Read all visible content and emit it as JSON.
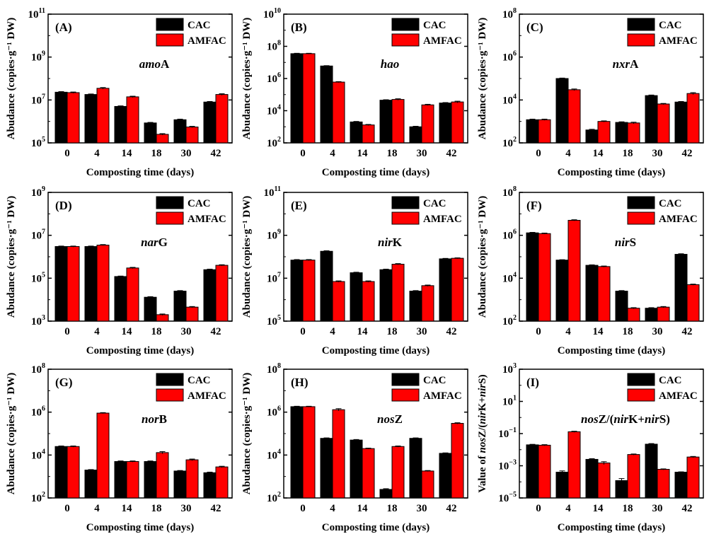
{
  "chart_data": {
    "type": "bar",
    "x_label": "Composting time (days)",
    "y_label": "Abudance (copies·g⁻¹ DW)",
    "categories": [
      "0",
      "4",
      "14",
      "18",
      "30",
      "42"
    ],
    "colors": {
      "CAC": "#000000",
      "AMFAC": "#ff0000"
    },
    "legend_location": "top-right",
    "panels": [
      {
        "label": "(A)",
        "gene_title": [
          {
            "t": "amo",
            "i": true
          },
          {
            "t": "A",
            "i": false
          }
        ],
        "y_axis_label": "Abudance (copies·g⁻¹ DW)",
        "y_log_range": [
          5,
          11
        ],
        "y_ticks": [
          5,
          7,
          9,
          11
        ],
        "series": [
          {
            "name": "CAC",
            "values": [
              23000000.0,
              18000000.0,
              5000000.0,
              850000.0,
              1200000.0,
              8000000.0
            ],
            "errors": [
              1500000.0,
              1000000.0,
              300000.0,
              50000.0,
              80000.0,
              500000.0
            ]
          },
          {
            "name": "AMFAC",
            "values": [
              22000000.0,
              35000000.0,
              14000000.0,
              250000.0,
              550000.0,
              18000000.0
            ],
            "errors": [
              1500000.0,
              3000000.0,
              1000000.0,
              20000.0,
              40000.0,
              1500000.0
            ]
          }
        ]
      },
      {
        "label": "(B)",
        "gene_title": [
          {
            "t": "hao",
            "i": true
          }
        ],
        "y_axis_label": "Abudance (copies·g⁻¹ DW)",
        "y_log_range": [
          2,
          10
        ],
        "y_ticks": [
          2,
          4,
          6,
          8,
          10
        ],
        "series": [
          {
            "name": "CAC",
            "values": [
              35000000.0,
              6000000.0,
              2000.0,
              45000.0,
              1000.0,
              30000.0
            ],
            "errors": [
              2000000.0,
              300000.0,
              150.0,
              3000.0,
              80.0,
              2000.0
            ]
          },
          {
            "name": "AMFAC",
            "values": [
              35000000.0,
              600000.0,
              1300.0,
              50000.0,
              23000.0,
              35000.0
            ],
            "errors": [
              2000000.0,
              40000.0,
              100.0,
              5000.0,
              2000.0,
              4000.0
            ]
          }
        ]
      },
      {
        "label": "(C)",
        "gene_title": [
          {
            "t": "nxr",
            "i": true
          },
          {
            "t": "A",
            "i": false
          }
        ],
        "y_axis_label": "Abudance (copies·g⁻¹ DW)",
        "y_log_range": [
          2,
          8
        ],
        "y_ticks": [
          2,
          4,
          6,
          8
        ],
        "series": [
          {
            "name": "CAC",
            "values": [
              1200.0,
              100000.0,
              400.0,
              900.0,
              16000.0,
              8000.0
            ],
            "errors": [
              80.0,
              5000.0,
              30.0,
              60.0,
              1000.0,
              500.0
            ]
          },
          {
            "name": "AMFAC",
            "values": [
              1200.0,
              30000.0,
              1000.0,
              850.0,
              6500.0,
              20000.0
            ],
            "errors": [
              80.0,
              2500.0,
              60.0,
              70.0,
              400.0,
              2000.0
            ]
          }
        ]
      },
      {
        "label": "(D)",
        "gene_title": [
          {
            "t": "nar",
            "i": true
          },
          {
            "t": "G",
            "i": false
          }
        ],
        "y_axis_label": "Abudance (copies·g⁻¹ DW)",
        "y_log_range": [
          3,
          9
        ],
        "y_ticks": [
          3,
          5,
          7,
          9
        ],
        "series": [
          {
            "name": "CAC",
            "values": [
              3000000.0,
              3000000.0,
              120000.0,
              13000.0,
              25000.0,
              250000.0
            ],
            "errors": [
              150000.0,
              150000.0,
              6000.0,
              800.0,
              1500.0,
              15000.0
            ]
          },
          {
            "name": "AMFAC",
            "values": [
              3000000.0,
              3500000.0,
              300000.0,
              2000.0,
              4500.0,
              400000.0
            ],
            "errors": [
              150000.0,
              200000.0,
              20000.0,
              150.0,
              300.0,
              25000.0
            ]
          }
        ]
      },
      {
        "label": "(E)",
        "gene_title": [
          {
            "t": "nir",
            "i": true
          },
          {
            "t": "K",
            "i": false
          }
        ],
        "y_axis_label": "Abudance (copies·g⁻¹ DW)",
        "y_log_range": [
          5,
          11
        ],
        "y_ticks": [
          5,
          7,
          9,
          11
        ],
        "series": [
          {
            "name": "CAC",
            "values": [
              70000000.0,
              180000000.0,
              18000000.0,
              25000000.0,
              2500000.0,
              80000000.0
            ],
            "errors": [
              4000000.0,
              10000000.0,
              1000000.0,
              1500000.0,
              150000.0,
              4000000.0
            ]
          },
          {
            "name": "AMFAC",
            "values": [
              70000000.0,
              7000000.0,
              7000000.0,
              45000000.0,
              4500000.0,
              85000000.0
            ],
            "errors": [
              4000000.0,
              500000.0,
              500000.0,
              3000000.0,
              300000.0,
              4000000.0
            ]
          }
        ]
      },
      {
        "label": "(F)",
        "gene_title": [
          {
            "t": "nir",
            "i": true
          },
          {
            "t": "S",
            "i": false
          }
        ],
        "y_axis_label": "Abudance (copies·g⁻¹ DW)",
        "y_log_range": [
          2,
          8
        ],
        "y_ticks": [
          2,
          4,
          6,
          8
        ],
        "series": [
          {
            "name": "CAC",
            "values": [
              1300000.0,
              70000.0,
              40000.0,
              2500.0,
              400.0,
              130000.0
            ],
            "errors": [
              70000.0,
              3000.0,
              2000.0,
              150.0,
              25.0,
              8000.0
            ]
          },
          {
            "name": "AMFAC",
            "values": [
              1200000.0,
              5000000.0,
              35000.0,
              400.0,
              450.0,
              5000.0
            ],
            "errors": [
              70000.0,
              300000.0,
              2000.0,
              25.0,
              30.0,
              300.0
            ]
          }
        ]
      },
      {
        "label": "(G)",
        "gene_title": [
          {
            "t": "nor",
            "i": true
          },
          {
            "t": "B",
            "i": false
          }
        ],
        "y_axis_label": "Abudance (copies·g⁻¹ DW)",
        "y_log_range": [
          2,
          8
        ],
        "y_ticks": [
          2,
          4,
          6,
          8
        ],
        "series": [
          {
            "name": "CAC",
            "values": [
              25000.0,
              2000.0,
              5000.0,
              5000.0,
              1800.0,
              1500.0
            ],
            "errors": [
              1500.0,
              100.0,
              300.0,
              300.0,
              100.0,
              100.0
            ]
          },
          {
            "name": "AMFAC",
            "values": [
              25000.0,
              900000.0,
              5000.0,
              13000.0,
              6000.0,
              2800.0
            ],
            "errors": [
              1500.0,
              50000.0,
              300.0,
              1500.0,
              500.0,
              200.0
            ]
          }
        ]
      },
      {
        "label": "(H)",
        "gene_title": [
          {
            "t": "nos",
            "i": true
          },
          {
            "t": "Z",
            "i": false
          }
        ],
        "y_axis_label": "Abudance (copies·g⁻¹ DW)",
        "y_log_range": [
          2,
          8
        ],
        "y_ticks": [
          2,
          4,
          6,
          8
        ],
        "series": [
          {
            "name": "CAC",
            "values": [
              1800000.0,
              60000.0,
              50000.0,
              250.0,
              60000.0,
              12000.0
            ],
            "errors": [
              80000.0,
              3000.0,
              3000.0,
              20.0,
              3000.0,
              600.0
            ]
          },
          {
            "name": "AMFAC",
            "values": [
              1800000.0,
              1300000.0,
              20000.0,
              25000.0,
              1800.0,
              300000.0
            ],
            "errors": [
              80000.0,
              150000.0,
              1000.0,
              1500.0,
              100.0,
              20000.0
            ]
          }
        ]
      },
      {
        "label": "(I)",
        "gene_title": [
          {
            "t": "nos",
            "i": true
          },
          {
            "t": "Z/(",
            "i": false
          },
          {
            "t": "nir",
            "i": true
          },
          {
            "t": "K+",
            "i": false
          },
          {
            "t": "nir",
            "i": true
          },
          {
            "t": "S)",
            "i": false
          }
        ],
        "y_axis_label_parts": [
          {
            "t": "Value of ",
            "i": false
          },
          {
            "t": "nos",
            "i": true
          },
          {
            "t": "Z/(",
            "i": false
          },
          {
            "t": "nir",
            "i": true
          },
          {
            "t": "K+",
            "i": false
          },
          {
            "t": "nir",
            "i": true
          },
          {
            "t": "S)",
            "i": false
          }
        ],
        "y_log_range": [
          -5,
          3
        ],
        "y_ticks": [
          -5,
          -3,
          -1,
          1,
          3
        ],
        "series": [
          {
            "name": "CAC",
            "values": [
              0.02,
              0.0004,
              0.0025,
              0.00012,
              0.022,
              0.0004
            ],
            "errors": [
              0.0015,
              8e-05,
              0.00025,
              4e-05,
              0.002,
              2e-05
            ]
          },
          {
            "name": "AMFAC",
            "values": [
              0.019,
              0.13,
              0.0015,
              0.005,
              0.0006,
              0.0035
            ],
            "errors": [
              0.0015,
              0.01,
              0.0003,
              0.0004,
              4e-05,
              0.0003
            ]
          }
        ]
      }
    ]
  }
}
